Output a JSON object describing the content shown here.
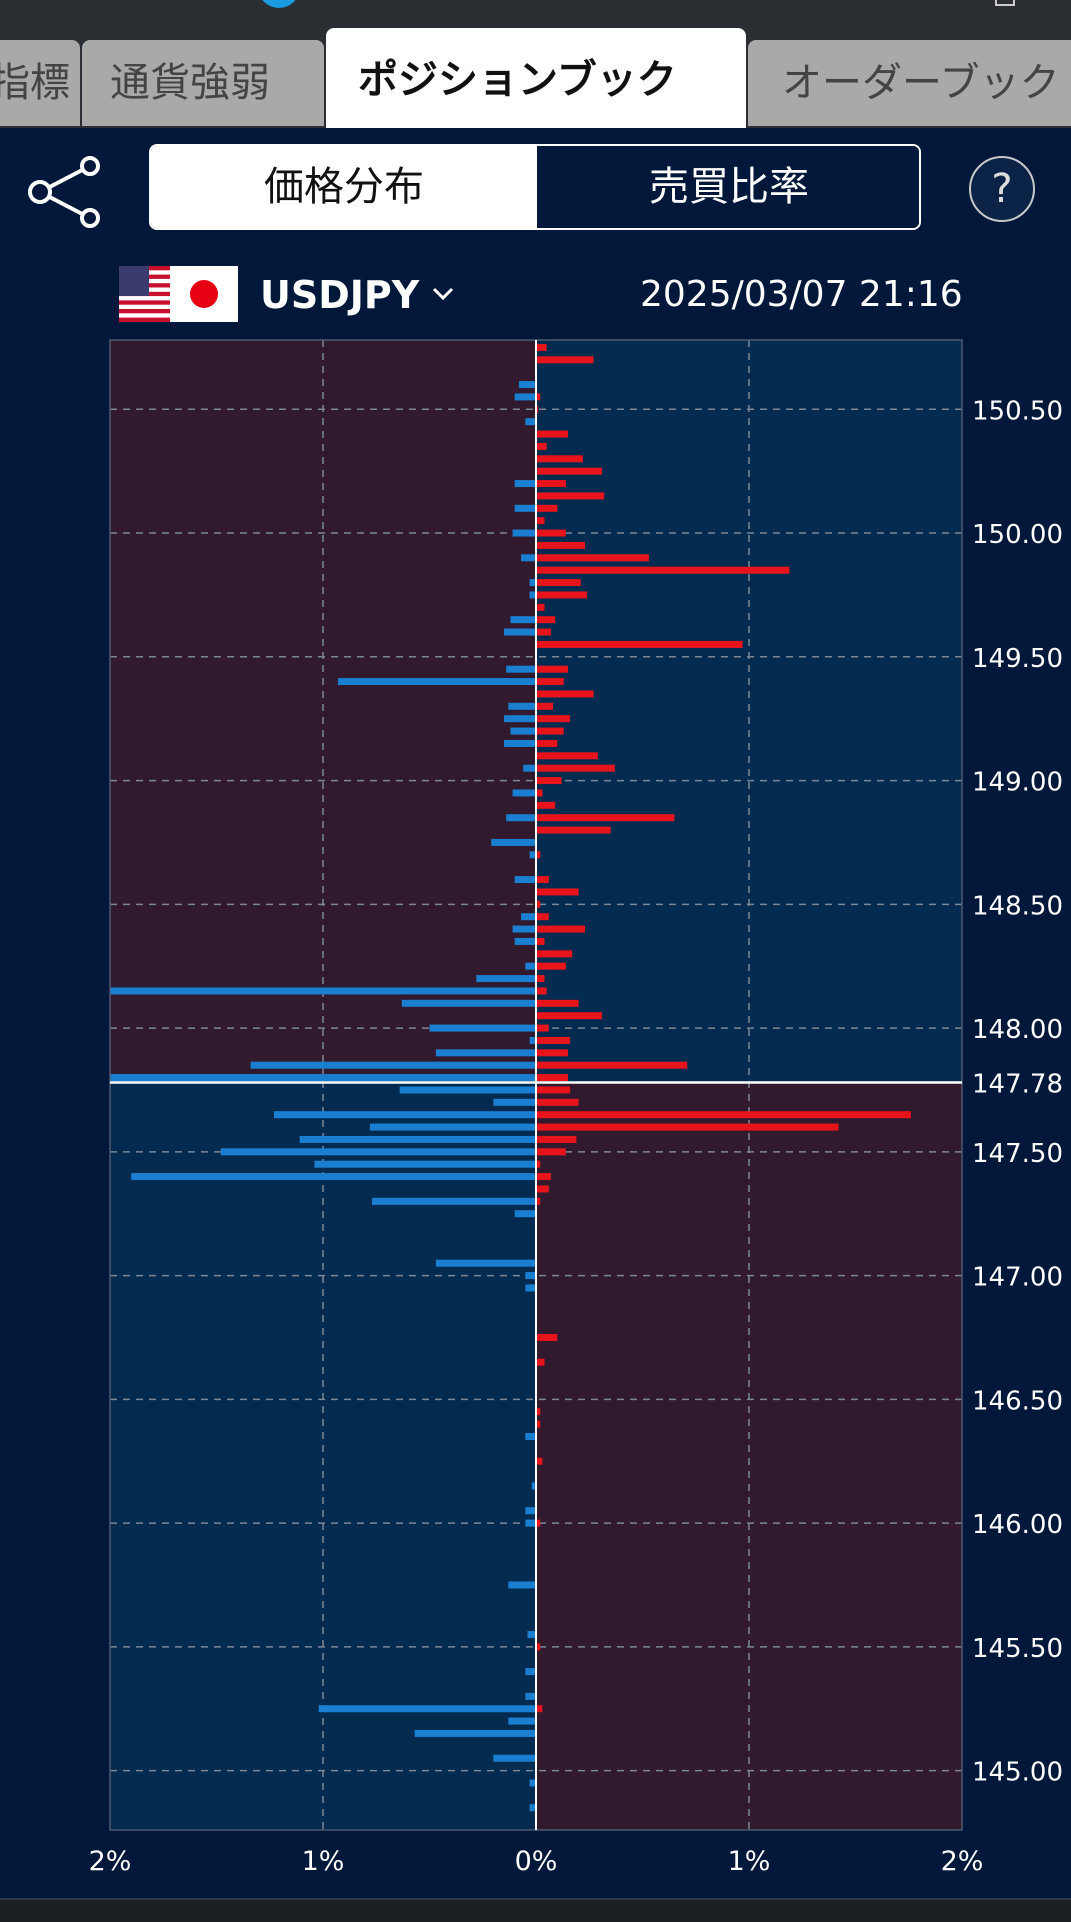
{
  "tabs": [
    {
      "label": "指標"
    },
    {
      "label": "通貨強弱"
    },
    {
      "label": "ポジションブック"
    },
    {
      "label": "オーダーブック"
    }
  ],
  "toolbar": {
    "segments": [
      "価格分布",
      "売買比率"
    ],
    "active_segment": "価格分布",
    "help_label": "?",
    "share_icon": "share-icon"
  },
  "pair_header": {
    "pair": "USDJPY",
    "flags": [
      "us-flag",
      "jp-flag"
    ],
    "timestamp": "2025/03/07 21:16"
  },
  "colors": {
    "buy": "#e8141c",
    "sell": "#1a7fd0",
    "zone_red": "#311a2e",
    "zone_blue": "#032b50",
    "background": "#02183a"
  },
  "chart_data": {
    "type": "bar",
    "orientation": "horizontal-butterfly",
    "y_axis_label": "",
    "x_tick_labels": [
      "2%",
      "1%",
      "0%",
      "1%",
      "2%"
    ],
    "xlim_percent": [
      -2,
      2
    ],
    "price_tick_labels": [
      "150.50",
      "150.00",
      "149.50",
      "149.00",
      "148.50",
      "148.00",
      "147.78",
      "147.50",
      "147.00",
      "146.50",
      "146.00",
      "145.50",
      "145.00"
    ],
    "current_price": 147.78,
    "grid": true,
    "price_range": [
      144.76,
      150.78
    ],
    "price_step": 0.05,
    "series": [
      {
        "prices": [
          150.75,
          150.7,
          150.65,
          150.6,
          150.55,
          150.5,
          150.45,
          150.4,
          150.35,
          150.3,
          150.25,
          150.2,
          150.15,
          150.1,
          150.05,
          150.0,
          149.95,
          149.9,
          149.85,
          149.8,
          149.75,
          149.7,
          149.65,
          149.6,
          149.55,
          149.5,
          149.45,
          149.4,
          149.35,
          149.3,
          149.25,
          149.2,
          149.15,
          149.1,
          149.05,
          149.0,
          148.95,
          148.9,
          148.85,
          148.8,
          148.75,
          148.7,
          148.65,
          148.6,
          148.55,
          148.5,
          148.45,
          148.4,
          148.35,
          148.3,
          148.25,
          148.2,
          148.15,
          148.1,
          148.05,
          148.0,
          147.95,
          147.9,
          147.85,
          147.8,
          147.75,
          147.7,
          147.65,
          147.6,
          147.55,
          147.5,
          147.45,
          147.4,
          147.35,
          147.3,
          147.25,
          147.2,
          147.15,
          147.1,
          147.05,
          147.0,
          146.95,
          146.9,
          146.85,
          146.8,
          146.75,
          146.7,
          146.65,
          146.6,
          146.55,
          146.5,
          146.45,
          146.4,
          146.35,
          146.3,
          146.25,
          146.2,
          146.15,
          146.1,
          146.05,
          146.0,
          145.95,
          145.9,
          145.85,
          145.8,
          145.75,
          145.7,
          145.65,
          145.6,
          145.55,
          145.5,
          145.45,
          145.4,
          145.35,
          145.3,
          145.25,
          145.2,
          145.15,
          145.1,
          145.05,
          145.0,
          144.95,
          144.9,
          144.85,
          144.8
        ],
        "buy_pct": [
          0.05,
          0.27,
          0.0,
          0.0,
          0.02,
          0.01,
          0.0,
          0.15,
          0.05,
          0.22,
          0.31,
          0.14,
          0.32,
          0.1,
          0.04,
          0.14,
          0.23,
          0.53,
          1.19,
          0.21,
          0.24,
          0.04,
          0.09,
          0.07,
          0.97,
          0.0,
          0.15,
          0.13,
          0.27,
          0.08,
          0.16,
          0.13,
          0.1,
          0.29,
          0.37,
          0.12,
          0.03,
          0.09,
          0.65,
          0.35,
          0.0,
          0.02,
          0.0,
          0.06,
          0.2,
          0.02,
          0.06,
          0.23,
          0.04,
          0.17,
          0.14,
          0.04,
          0.05,
          0.2,
          0.31,
          0.06,
          0.16,
          0.15,
          0.71,
          0.15,
          0.16,
          0.2,
          1.76,
          1.42,
          0.19,
          0.14,
          0.02,
          0.07,
          0.06,
          0.02,
          0.0,
          0.0,
          0.0,
          0.0,
          0.0,
          0.0,
          0.0,
          0.0,
          0.0,
          0.0,
          0.1,
          0.0,
          0.04,
          0.0,
          0.0,
          0.0,
          0.02,
          0.02,
          0.0,
          0.0,
          0.03,
          0.0,
          0.0,
          0.0,
          0.0,
          0.02,
          0.0,
          0.0,
          0.0,
          0.0,
          0.0,
          0.0,
          0.0,
          0.0,
          0.0,
          0.02,
          0.0,
          0.0,
          0.0,
          0.0,
          0.03,
          0.0,
          0.0,
          0.0,
          0.0,
          0.0,
          0.0,
          0.0,
          0.0,
          0.0
        ],
        "sell_pct": [
          0.0,
          0.0,
          0.0,
          0.08,
          0.1,
          0.0,
          0.05,
          0.0,
          0.0,
          0.0,
          0.0,
          0.1,
          0.0,
          0.1,
          0.0,
          0.11,
          0.0,
          0.07,
          0.0,
          0.03,
          0.03,
          0.0,
          0.12,
          0.15,
          0.0,
          0.0,
          0.14,
          0.93,
          0.0,
          0.13,
          0.15,
          0.12,
          0.15,
          0.0,
          0.06,
          0.0,
          0.11,
          0.0,
          0.14,
          0.0,
          0.21,
          0.03,
          0.0,
          0.1,
          0.0,
          0.0,
          0.07,
          0.11,
          0.1,
          0.0,
          0.05,
          0.28,
          2.0,
          0.63,
          0.0,
          0.5,
          0.03,
          0.47,
          1.34,
          2.0,
          0.64,
          0.2,
          1.23,
          0.78,
          1.11,
          1.48,
          1.04,
          1.9,
          0.0,
          0.77,
          0.1,
          0.0,
          0.0,
          0.0,
          0.47,
          0.05,
          0.05,
          0.0,
          0.0,
          0.0,
          0.0,
          0.0,
          0.0,
          0.0,
          0.0,
          0.0,
          0.0,
          0.0,
          0.05,
          0.0,
          0.0,
          0.0,
          0.02,
          0.0,
          0.05,
          0.05,
          0.0,
          0.0,
          0.0,
          0.0,
          0.13,
          0.0,
          0.0,
          0.0,
          0.04,
          0.0,
          0.0,
          0.05,
          0.0,
          0.05,
          1.02,
          0.13,
          0.57,
          0.0,
          0.2,
          0.0,
          0.03,
          0.0,
          0.03,
          0.0
        ]
      }
    ]
  }
}
